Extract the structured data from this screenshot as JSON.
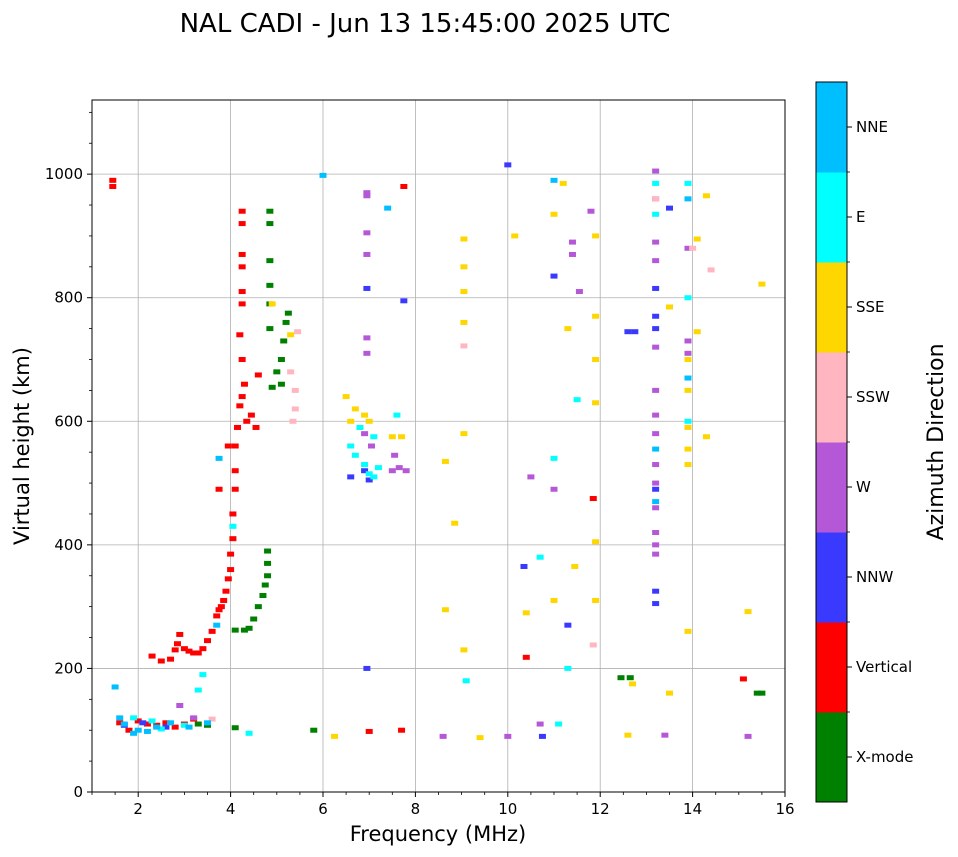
{
  "chart_data": {
    "type": "scatter",
    "title": "NAL CADI - Jun 13 15:45:00 2025 UTC",
    "xlabel": "Frequency (MHz)",
    "ylabel": "Virtual height (km)",
    "xlim": [
      1,
      16
    ],
    "ylim": [
      0,
      1120
    ],
    "xticks": [
      2,
      4,
      6,
      8,
      10,
      12,
      14,
      16
    ],
    "yticks": [
      0,
      200,
      400,
      600,
      800,
      1000
    ],
    "grid": true,
    "colorbar": {
      "label": "Azimuth Direction",
      "categories": [
        {
          "name": "X-mode",
          "color": "#008000"
        },
        {
          "name": "Vertical",
          "color": "#ff0000"
        },
        {
          "name": "NNW",
          "color": "#3a3aff"
        },
        {
          "name": "W",
          "color": "#b558d8"
        },
        {
          "name": "SSW",
          "color": "#ffb6c1"
        },
        {
          "name": "SSE",
          "color": "#ffd700"
        },
        {
          "name": "E",
          "color": "#00ffff"
        },
        {
          "name": "NNE",
          "color": "#00bfff"
        }
      ]
    },
    "series": [
      {
        "name": "Vertical",
        "points": [
          [
            1.45,
            990
          ],
          [
            1.45,
            980
          ],
          [
            2.3,
            220
          ],
          [
            2.5,
            212
          ],
          [
            2.7,
            215
          ],
          [
            2.8,
            230
          ],
          [
            2.85,
            240
          ],
          [
            2.9,
            255
          ],
          [
            3.0,
            232
          ],
          [
            3.1,
            228
          ],
          [
            3.2,
            225
          ],
          [
            3.3,
            225
          ],
          [
            3.4,
            232
          ],
          [
            3.5,
            245
          ],
          [
            3.6,
            260
          ],
          [
            3.7,
            285
          ],
          [
            3.75,
            295
          ],
          [
            3.8,
            300
          ],
          [
            3.85,
            310
          ],
          [
            3.9,
            325
          ],
          [
            3.95,
            345
          ],
          [
            4.0,
            360
          ],
          [
            4.0,
            385
          ],
          [
            4.05,
            410
          ],
          [
            4.05,
            450
          ],
          [
            4.1,
            490
          ],
          [
            4.1,
            520
          ],
          [
            4.1,
            560
          ],
          [
            4.15,
            590
          ],
          [
            4.2,
            625
          ],
          [
            4.25,
            640
          ],
          [
            4.3,
            660
          ],
          [
            4.25,
            700
          ],
          [
            4.2,
            740
          ],
          [
            4.25,
            790
          ],
          [
            4.25,
            810
          ],
          [
            4.25,
            850
          ],
          [
            4.25,
            870
          ],
          [
            4.25,
            920
          ],
          [
            4.25,
            940
          ],
          [
            4.35,
            600
          ],
          [
            4.45,
            610
          ],
          [
            4.55,
            590
          ],
          [
            4.6,
            675
          ],
          [
            3.95,
            560
          ],
          [
            3.75,
            490
          ],
          [
            2.0,
            115
          ],
          [
            2.2,
            110
          ],
          [
            2.4,
            108
          ],
          [
            2.6,
            112
          ],
          [
            2.8,
            105
          ],
          [
            3.0,
            110
          ],
          [
            3.2,
            118
          ],
          [
            1.6,
            112
          ],
          [
            1.8,
            100
          ],
          [
            10.4,
            218
          ],
          [
            11.85,
            475
          ],
          [
            15.1,
            183
          ],
          [
            7.0,
            98
          ],
          [
            7.7,
            100
          ],
          [
            7.75,
            980
          ]
        ]
      },
      {
        "name": "X-mode",
        "points": [
          [
            4.1,
            262
          ],
          [
            4.3,
            262
          ],
          [
            4.4,
            265
          ],
          [
            4.5,
            280
          ],
          [
            4.6,
            300
          ],
          [
            4.7,
            318
          ],
          [
            4.75,
            335
          ],
          [
            4.8,
            350
          ],
          [
            4.8,
            370
          ],
          [
            4.8,
            390
          ],
          [
            4.9,
            655
          ],
          [
            5.0,
            680
          ],
          [
            5.1,
            700
          ],
          [
            5.15,
            730
          ],
          [
            5.2,
            760
          ],
          [
            5.25,
            775
          ],
          [
            5.1,
            660
          ],
          [
            4.85,
            940
          ],
          [
            4.85,
            920
          ],
          [
            4.85,
            860
          ],
          [
            4.85,
            820
          ],
          [
            4.85,
            790
          ],
          [
            4.85,
            750
          ],
          [
            3.3,
            110
          ],
          [
            3.5,
            108
          ],
          [
            4.1,
            104
          ],
          [
            5.8,
            100
          ],
          [
            12.45,
            185
          ],
          [
            12.65,
            185
          ],
          [
            15.5,
            160
          ],
          [
            15.4,
            160
          ]
        ]
      },
      {
        "name": "NNW",
        "points": [
          [
            6.6,
            510
          ],
          [
            6.9,
            520
          ],
          [
            7.0,
            505
          ],
          [
            6.95,
            815
          ],
          [
            7.75,
            795
          ],
          [
            10.0,
            1015
          ],
          [
            10.35,
            365
          ],
          [
            10.75,
            90
          ],
          [
            11.0,
            835
          ],
          [
            11.3,
            270
          ],
          [
            12.6,
            745
          ],
          [
            12.75,
            745
          ],
          [
            13.2,
            325
          ],
          [
            13.2,
            305
          ],
          [
            13.2,
            490
          ],
          [
            13.2,
            750
          ],
          [
            13.2,
            770
          ],
          [
            13.2,
            815
          ],
          [
            13.5,
            945
          ],
          [
            6.95,
            200
          ],
          [
            1.7,
            108
          ],
          [
            2.1,
            112
          ],
          [
            2.6,
            105
          ]
        ]
      },
      {
        "name": "W",
        "points": [
          [
            6.95,
            965
          ],
          [
            6.95,
            970
          ],
          [
            6.95,
            905
          ],
          [
            6.95,
            870
          ],
          [
            6.95,
            735
          ],
          [
            6.95,
            710
          ],
          [
            7.5,
            520
          ],
          [
            7.55,
            545
          ],
          [
            7.65,
            525
          ],
          [
            7.8,
            520
          ],
          [
            6.9,
            580
          ],
          [
            7.05,
            560
          ],
          [
            8.6,
            90
          ],
          [
            10.0,
            90
          ],
          [
            10.7,
            110
          ],
          [
            10.5,
            510
          ],
          [
            11.0,
            490
          ],
          [
            11.4,
            870
          ],
          [
            11.4,
            890
          ],
          [
            11.55,
            810
          ],
          [
            11.8,
            940
          ],
          [
            13.2,
            1005
          ],
          [
            13.2,
            960
          ],
          [
            13.2,
            890
          ],
          [
            13.2,
            860
          ],
          [
            13.2,
            720
          ],
          [
            13.2,
            650
          ],
          [
            13.2,
            610
          ],
          [
            13.2,
            580
          ],
          [
            13.2,
            530
          ],
          [
            13.2,
            500
          ],
          [
            13.2,
            460
          ],
          [
            13.2,
            420
          ],
          [
            13.2,
            400
          ],
          [
            13.2,
            385
          ],
          [
            13.4,
            92
          ],
          [
            13.9,
            730
          ],
          [
            13.9,
            710
          ],
          [
            13.9,
            880
          ],
          [
            15.2,
            90
          ],
          [
            3.2,
            120
          ],
          [
            2.9,
            140
          ]
        ]
      },
      {
        "name": "SSW",
        "points": [
          [
            5.4,
            650
          ],
          [
            5.4,
            620
          ],
          [
            5.35,
            600
          ],
          [
            5.3,
            680
          ],
          [
            5.45,
            745
          ],
          [
            11.85,
            238
          ],
          [
            14.4,
            845
          ],
          [
            14.0,
            880
          ],
          [
            13.2,
            960
          ],
          [
            3.6,
            118
          ],
          [
            9.05,
            722
          ]
        ]
      },
      {
        "name": "SSE",
        "points": [
          [
            6.6,
            600
          ],
          [
            6.7,
            620
          ],
          [
            6.9,
            610
          ],
          [
            7.0,
            600
          ],
          [
            6.5,
            640
          ],
          [
            7.5,
            575
          ],
          [
            7.7,
            575
          ],
          [
            8.65,
            535
          ],
          [
            8.85,
            435
          ],
          [
            8.65,
            295
          ],
          [
            9.05,
            230
          ],
          [
            9.05,
            580
          ],
          [
            9.05,
            760
          ],
          [
            9.05,
            810
          ],
          [
            9.05,
            850
          ],
          [
            9.05,
            895
          ],
          [
            9.4,
            88
          ],
          [
            10.15,
            900
          ],
          [
            10.4,
            290
          ],
          [
            11.0,
            935
          ],
          [
            11.0,
            310
          ],
          [
            11.2,
            985
          ],
          [
            11.3,
            750
          ],
          [
            11.45,
            365
          ],
          [
            11.9,
            900
          ],
          [
            11.9,
            770
          ],
          [
            11.9,
            700
          ],
          [
            11.9,
            630
          ],
          [
            11.9,
            405
          ],
          [
            11.9,
            310
          ],
          [
            12.6,
            92
          ],
          [
            12.7,
            175
          ],
          [
            13.5,
            785
          ],
          [
            13.5,
            160
          ],
          [
            13.9,
            260
          ],
          [
            13.9,
            530
          ],
          [
            13.9,
            555
          ],
          [
            13.9,
            590
          ],
          [
            13.9,
            650
          ],
          [
            13.9,
            700
          ],
          [
            14.1,
            895
          ],
          [
            14.1,
            745
          ],
          [
            14.3,
            965
          ],
          [
            14.3,
            575
          ],
          [
            15.2,
            292
          ],
          [
            15.5,
            822
          ],
          [
            4.9,
            790
          ],
          [
            5.3,
            740
          ],
          [
            6.25,
            90
          ]
        ]
      },
      {
        "name": "E",
        "points": [
          [
            6.6,
            560
          ],
          [
            6.7,
            545
          ],
          [
            6.9,
            530
          ],
          [
            7.0,
            515
          ],
          [
            7.1,
            510
          ],
          [
            7.2,
            525
          ],
          [
            6.8,
            590
          ],
          [
            7.6,
            610
          ],
          [
            7.1,
            575
          ],
          [
            10.7,
            380
          ],
          [
            11.0,
            540
          ],
          [
            11.5,
            635
          ],
          [
            11.3,
            200
          ],
          [
            11.1,
            110
          ],
          [
            13.2,
            985
          ],
          [
            13.2,
            935
          ],
          [
            13.9,
            985
          ],
          [
            13.9,
            800
          ],
          [
            13.9,
            600
          ],
          [
            4.4,
            95
          ],
          [
            9.1,
            180
          ],
          [
            1.9,
            120
          ],
          [
            2.3,
            115
          ],
          [
            2.5,
            102
          ],
          [
            3.0,
            108
          ],
          [
            3.3,
            165
          ],
          [
            3.4,
            190
          ],
          [
            4.05,
            430
          ]
        ]
      },
      {
        "name": "NNE",
        "points": [
          [
            1.5,
            170
          ],
          [
            1.6,
            120
          ],
          [
            1.7,
            110
          ],
          [
            1.9,
            95
          ],
          [
            2.0,
            100
          ],
          [
            2.2,
            98
          ],
          [
            2.4,
            105
          ],
          [
            2.7,
            112
          ],
          [
            3.1,
            105
          ],
          [
            3.5,
            112
          ],
          [
            3.7,
            270
          ],
          [
            3.75,
            540
          ],
          [
            13.9,
            960
          ],
          [
            13.9,
            670
          ],
          [
            13.2,
            555
          ],
          [
            13.2,
            470
          ],
          [
            11.0,
            990
          ],
          [
            7.4,
            945
          ],
          [
            6.0,
            998
          ]
        ]
      }
    ]
  }
}
